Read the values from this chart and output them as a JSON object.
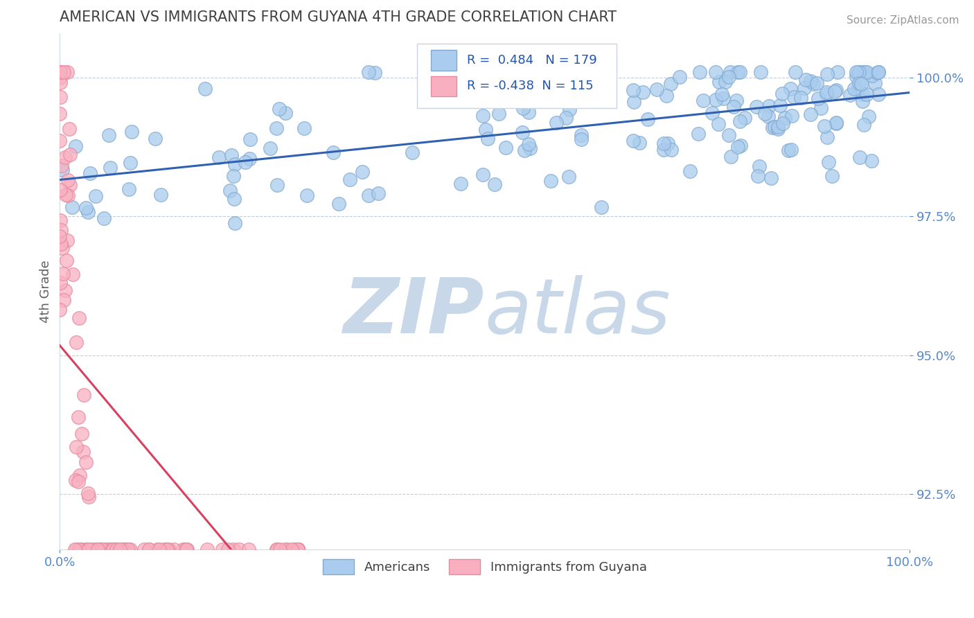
{
  "title": "AMERICAN VS IMMIGRANTS FROM GUYANA 4TH GRADE CORRELATION CHART",
  "source_text": "Source: ZipAtlas.com",
  "ylabel": "4th Grade",
  "xlim": [
    0.0,
    1.0
  ],
  "ylim": [
    0.915,
    1.008
  ],
  "yticks": [
    0.925,
    0.95,
    0.975,
    1.0
  ],
  "ytick_labels": [
    "92.5%",
    "95.0%",
    "97.5%",
    "100.0%"
  ],
  "xticks": [
    0.0,
    1.0
  ],
  "xtick_labels": [
    "0.0%",
    "100.0%"
  ],
  "american_R": 0.484,
  "american_N": 179,
  "guyana_R": -0.438,
  "guyana_N": 115,
  "american_color": "#aaccee",
  "american_edge_color": "#80aad0",
  "guyana_color": "#f8b0c0",
  "guyana_edge_color": "#e888a0",
  "trend_american_color": "#3060b0",
  "trend_guyana_color": "#d84060",
  "watermark_color": "#c8d8e8",
  "title_color": "#404040",
  "axis_label_color": "#606060",
  "tick_color": "#5588cc",
  "background_color": "#ffffff",
  "american_seed": 12,
  "guyana_seed": 7
}
